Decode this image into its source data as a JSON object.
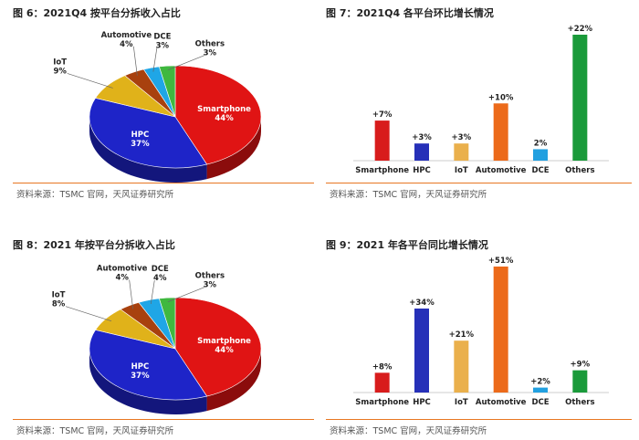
{
  "source_text": "资料来源：TSMC 官网，天风证券研究所",
  "chart_data": [
    {
      "type": "pie",
      "title": "图 6：2021Q4 按平台分拆收入占比",
      "slices": [
        {
          "label": "Smartphone",
          "value": 44,
          "value_label": "44%",
          "color": "#e01414"
        },
        {
          "label": "HPC",
          "value": 37,
          "value_label": "37%",
          "color": "#1e24c8"
        },
        {
          "label": "IoT",
          "value": 9,
          "value_label": "9%",
          "color": "#e0b21a"
        },
        {
          "label": "Automotive",
          "value": 4,
          "value_label": "4%",
          "color": "#a8410e"
        },
        {
          "label": "DCE",
          "value": 3,
          "value_label": "3%",
          "color": "#1fa6e6"
        },
        {
          "label": "Others",
          "value": 3,
          "value_label": "3%",
          "color": "#3fb83f"
        }
      ]
    },
    {
      "type": "bar",
      "title": "图 7：2021Q4 各平台环比增长情况",
      "categories": [
        "Smartphone",
        "HPC",
        "IoT",
        "Automotive",
        "DCE",
        "Others"
      ],
      "values": [
        7,
        3,
        3,
        10,
        2,
        22
      ],
      "labels": [
        "+7%",
        "+3%",
        "+3%",
        "+10%",
        "2%",
        "+22%"
      ],
      "colors": [
        "#d81c1c",
        "#2630b8",
        "#eab04c",
        "#ec6a1a",
        "#22a0e0",
        "#1a9a3a"
      ],
      "ylim": [
        0,
        22
      ]
    },
    {
      "type": "pie",
      "title": "图 8：2021 年按平台分拆收入占比",
      "slices": [
        {
          "label": "Smartphone",
          "value": 44,
          "value_label": "44%",
          "color": "#e01414"
        },
        {
          "label": "HPC",
          "value": 37,
          "value_label": "37%",
          "color": "#1e24c8"
        },
        {
          "label": "IoT",
          "value": 8,
          "value_label": "8%",
          "color": "#e0b21a"
        },
        {
          "label": "Automotive",
          "value": 4,
          "value_label": "4%",
          "color": "#a8410e"
        },
        {
          "label": "DCE",
          "value": 4,
          "value_label": "4%",
          "color": "#1fa6e6"
        },
        {
          "label": "Others",
          "value": 3,
          "value_label": "3%",
          "color": "#3fb83f"
        }
      ]
    },
    {
      "type": "bar",
      "title": "图 9：2021 年各平台同比增长情况",
      "categories": [
        "Smartphone",
        "HPC",
        "IoT",
        "Automotive",
        "DCE",
        "Others"
      ],
      "values": [
        8,
        34,
        21,
        51,
        2,
        9
      ],
      "labels": [
        "+8%",
        "+34%",
        "+21%",
        "+51%",
        "+2%",
        "+9%"
      ],
      "colors": [
        "#d81c1c",
        "#2630b8",
        "#eab04c",
        "#ec6a1a",
        "#22a0e0",
        "#1a9a3a"
      ],
      "ylim": [
        0,
        51
      ]
    }
  ]
}
